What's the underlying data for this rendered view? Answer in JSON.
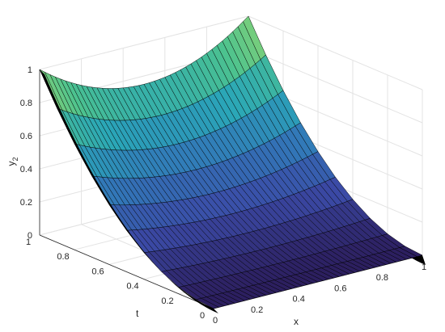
{
  "chart_data": {
    "type": "surface",
    "title": "",
    "xlabel": "x",
    "ylabel": "t",
    "zlabel_main": "y",
    "zlabel_sub": "2",
    "xlim": [
      0,
      1
    ],
    "ylim": [
      0,
      1
    ],
    "zlim": [
      0,
      1
    ],
    "xticks": [
      "0",
      "0.2",
      "0.4",
      "0.6",
      "0.8",
      "1"
    ],
    "yticks": [
      "0",
      "0.2",
      "0.4",
      "0.6",
      "0.8",
      "1"
    ],
    "zticks": [
      "0",
      "0.2",
      "0.4",
      "0.6",
      "0.8",
      "1"
    ],
    "grid": true,
    "colormap": [
      "#2c1e5e",
      "#3b4aa6",
      "#3277b8",
      "#2aa6b8",
      "#4cc28f",
      "#9fd96b"
    ],
    "surface": {
      "description_of_values": "y2(x,t) = t^2 * ((x - 0.5)^2 + 0.75)",
      "corner_values": {
        "x0_t0": 0,
        "x1_t0": 0,
        "x0_t1": 1,
        "x1_t1": 1,
        "x0.5_t1": 0.75
      },
      "x_samples": 41,
      "t_samples": 11
    }
  }
}
